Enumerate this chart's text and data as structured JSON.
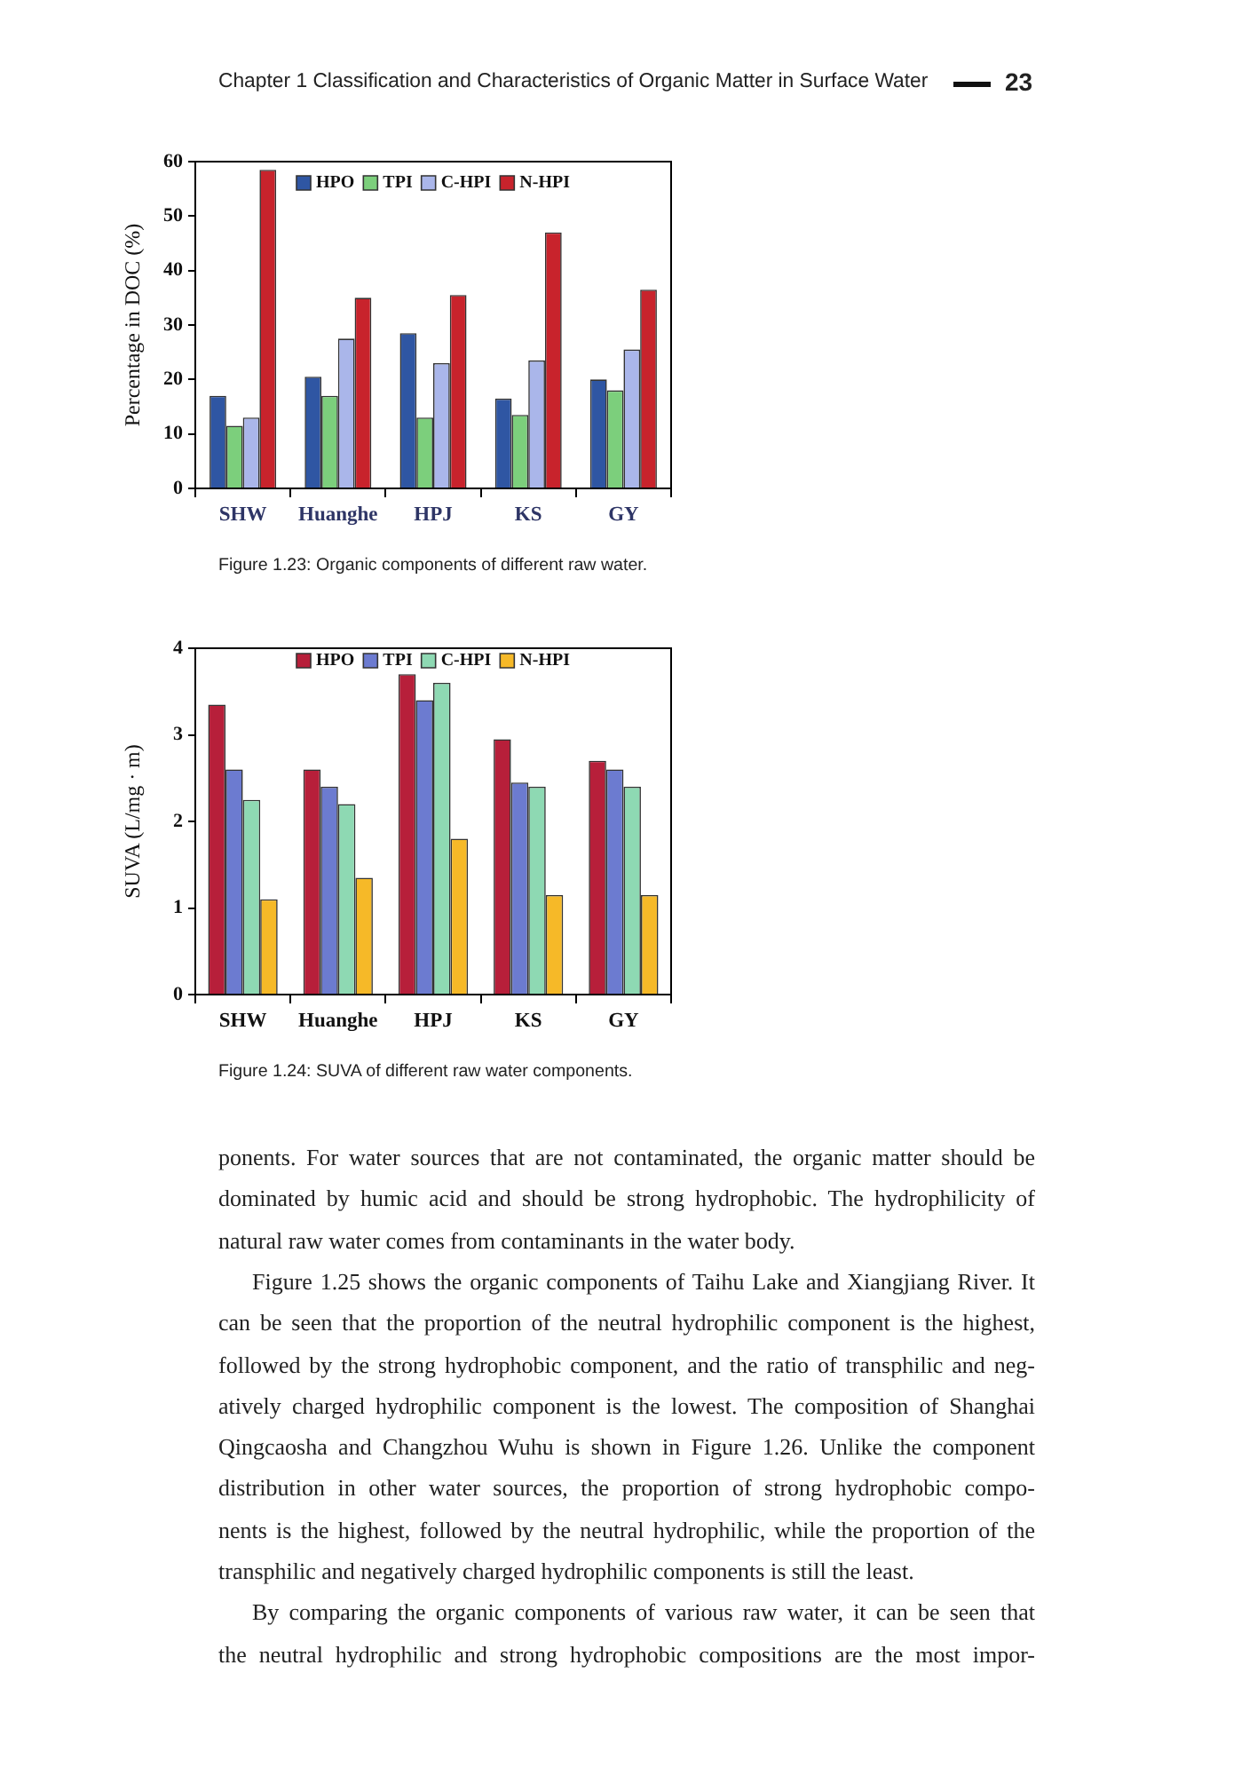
{
  "chart_data": [
    {
      "type": "bar",
      "categories": [
        "SHW",
        "Huanghe",
        "HPJ",
        "KS",
        "GY"
      ],
      "series": [
        {
          "name": "HPO",
          "color": "#2f56a3",
          "values": [
            17,
            20.5,
            28.5,
            16.5,
            20
          ]
        },
        {
          "name": "TPI",
          "color": "#7ccf7c",
          "values": [
            11.5,
            17,
            13,
            13.5,
            18
          ]
        },
        {
          "name": "C-HPI",
          "color": "#aab6ea",
          "values": [
            13,
            27.5,
            23,
            23.5,
            25.5
          ]
        },
        {
          "name": "N-HPI",
          "color": "#c8232c",
          "values": [
            58.5,
            35,
            35.5,
            47,
            36.5
          ]
        }
      ],
      "ylabel": "Percentage in DOC (%)",
      "ylim": [
        0,
        60
      ],
      "yticks": [
        0,
        10,
        20,
        30,
        40,
        50,
        60
      ],
      "legend": "top",
      "annotations": [
        "Chapter 1 Classification and Characteristics of Organic Matter in Surface Water",
        "23",
        "Figure 1.23: Organic components of different raw water."
      ]
    },
    {
      "type": "bar",
      "categories": [
        "SHW",
        "Huanghe",
        "HPJ",
        "KS",
        "GY"
      ],
      "series": [
        {
          "name": "HPO",
          "color": "#b71f3a",
          "values": [
            3.35,
            2.6,
            3.7,
            2.95,
            2.7
          ]
        },
        {
          "name": "TPI",
          "color": "#6c7bd0",
          "values": [
            2.6,
            2.4,
            3.4,
            2.45,
            2.6
          ]
        },
        {
          "name": "C-HPI",
          "color": "#8ed9b3",
          "values": [
            2.25,
            2.2,
            3.6,
            2.4,
            2.4
          ]
        },
        {
          "name": "N-HPI",
          "color": "#f6b928",
          "values": [
            1.1,
            1.35,
            1.8,
            1.15,
            1.15
          ]
        }
      ],
      "ylabel": "SUVA (L/mg · m)",
      "ylim": [
        0,
        4
      ],
      "yticks": [
        0,
        1,
        2,
        3,
        4
      ],
      "legend": "top",
      "annotations": [
        "Figure 1.24: SUVA of different raw water components.",
        "ponents. For water sources that are not contaminated, the organic matter should be\ndominated by humic acid and should be strong hydrophobic. The hydrophilicity of\nnatural raw water comes from contaminants in the water body.",
        "Figure 1.25 shows the organic components of Taihu Lake and Xiangjiang River. It\ncan be seen that the proportion of the neutral hydrophilic component is the highest,\nfollowed by the strong hydrophobic component, and the ratio of transphilic and neg-\natively charged hydrophilic component is the lowest. The composition of Shanghai\nQingcaosha and Changzhou Wuhu is shown in Figure 1.26. Unlike the component\ndistribution in other water sources, the proportion of strong hydrophobic compo-\nnents is the highest, followed by the neutral hydrophilic, while the proportion of the\ntransphilic and negatively charged hydrophilic components is still the least.",
        "By comparing the organic components of various raw water, it can be seen that\nthe neutral hydrophilic and strong hydrophobic compositions are the most impor-"
      ]
    }
  ]
}
